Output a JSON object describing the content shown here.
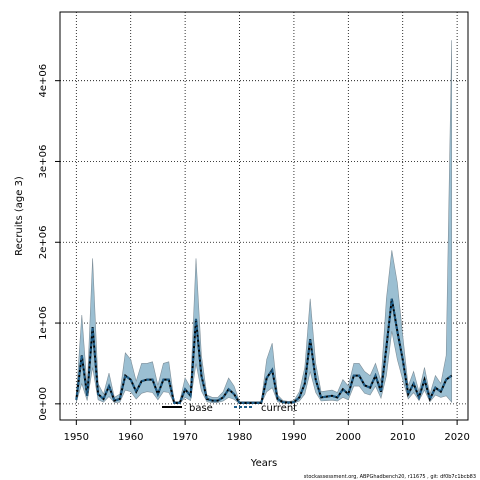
{
  "chart_data": {
    "type": "line",
    "xlabel": "Years",
    "ylabel": "Recruits (age 3)",
    "xlim": [
      1947,
      2022
    ],
    "ylim": [
      -200000,
      4850000
    ],
    "xticks": [
      1950,
      1960,
      1970,
      1980,
      1990,
      2000,
      2010,
      2020
    ],
    "xtick_labels": [
      "1950",
      "1960",
      "1970",
      "1980",
      "1990",
      "2000",
      "2010",
      "2020"
    ],
    "yticks": [
      0,
      1000000,
      2000000,
      3000000,
      4000000
    ],
    "ytick_labels": [
      "0e+00",
      "1e+06",
      "2e+06",
      "3e+06",
      "4e+06"
    ],
    "grid": true,
    "grid_style": "dotted",
    "legend_position": "bottom-center",
    "footer": "stockassessment.org, ABPGhadbench20, r11675 , git: df0b7c1bcb83",
    "colors": {
      "band": "#9bbfd2",
      "band_edge": "#7f8f99",
      "base": "#000000",
      "current": "#1f5f8b"
    },
    "x": [
      1950,
      1951,
      1952,
      1953,
      1954,
      1955,
      1956,
      1957,
      1958,
      1959,
      1960,
      1961,
      1962,
      1963,
      1964,
      1965,
      1966,
      1967,
      1968,
      1969,
      1970,
      1971,
      1972,
      1973,
      1974,
      1975,
      1976,
      1977,
      1978,
      1979,
      1980,
      1981,
      1982,
      1983,
      1984,
      1985,
      1986,
      1987,
      1988,
      1989,
      1990,
      1991,
      1992,
      1993,
      1994,
      1995,
      1996,
      1997,
      1998,
      1999,
      2000,
      2001,
      2002,
      2003,
      2004,
      2005,
      2006,
      2007,
      2008,
      2009,
      2010,
      2011,
      2012,
      2013,
      2014,
      2015,
      2016,
      2017,
      2018,
      2019
    ],
    "series": [
      {
        "name": "base",
        "values": [
          50000,
          600000,
          100000,
          950000,
          120000,
          60000,
          220000,
          40000,
          60000,
          350000,
          300000,
          150000,
          280000,
          300000,
          300000,
          120000,
          300000,
          300000,
          10000,
          10000,
          180000,
          100000,
          1050000,
          350000,
          60000,
          40000,
          40000,
          80000,
          180000,
          120000,
          10000,
          10000,
          10000,
          10000,
          10000,
          320000,
          420000,
          60000,
          20000,
          15000,
          20000,
          80000,
          250000,
          800000,
          300000,
          80000,
          90000,
          100000,
          80000,
          180000,
          120000,
          350000,
          350000,
          230000,
          200000,
          350000,
          150000,
          700000,
          1300000,
          900000,
          550000,
          120000,
          250000,
          80000,
          300000,
          60000,
          200000,
          150000,
          300000,
          350000
        ]
      },
      {
        "name": "current",
        "values": [
          50000,
          600000,
          100000,
          950000,
          120000,
          60000,
          220000,
          40000,
          60000,
          350000,
          300000,
          150000,
          280000,
          300000,
          300000,
          120000,
          300000,
          300000,
          10000,
          10000,
          180000,
          100000,
          1050000,
          350000,
          60000,
          40000,
          40000,
          80000,
          180000,
          120000,
          10000,
          10000,
          10000,
          10000,
          10000,
          320000,
          420000,
          60000,
          20000,
          15000,
          20000,
          80000,
          250000,
          800000,
          300000,
          80000,
          90000,
          100000,
          80000,
          180000,
          120000,
          350000,
          350000,
          230000,
          200000,
          350000,
          150000,
          700000,
          1300000,
          900000,
          550000,
          120000,
          250000,
          80000,
          300000,
          60000,
          200000,
          150000,
          300000,
          350000
        ]
      }
    ],
    "band_upper": [
      100000,
      1100000,
      200000,
      1800000,
      250000,
      120000,
      380000,
      80000,
      120000,
      630000,
      550000,
      280000,
      500000,
      500000,
      520000,
      230000,
      500000,
      520000,
      30000,
      30000,
      320000,
      200000,
      1800000,
      600000,
      110000,
      80000,
      80000,
      150000,
      320000,
      220000,
      30000,
      30000,
      30000,
      30000,
      30000,
      550000,
      750000,
      110000,
      40000,
      30000,
      40000,
      150000,
      450000,
      1300000,
      500000,
      150000,
      160000,
      170000,
      140000,
      300000,
      220000,
      500000,
      500000,
      400000,
      350000,
      500000,
      280000,
      1300000,
      1900000,
      1500000,
      850000,
      220000,
      400000,
      150000,
      450000,
      120000,
      350000,
      250000,
      600000,
      4500000
    ],
    "band_lower": [
      20000,
      250000,
      40000,
      450000,
      50000,
      20000,
      90000,
      15000,
      20000,
      170000,
      150000,
      60000,
      130000,
      150000,
      140000,
      50000,
      150000,
      140000,
      3000,
      3000,
      80000,
      40000,
      500000,
      160000,
      25000,
      15000,
      15000,
      35000,
      80000,
      55000,
      3000,
      3000,
      3000,
      3000,
      3000,
      150000,
      200000,
      25000,
      8000,
      5000,
      8000,
      35000,
      120000,
      400000,
      140000,
      35000,
      40000,
      45000,
      35000,
      80000,
      50000,
      220000,
      220000,
      130000,
      110000,
      220000,
      70000,
      350000,
      900000,
      550000,
      300000,
      60000,
      140000,
      40000,
      170000,
      25000,
      110000,
      80000,
      100000,
      20000
    ]
  }
}
